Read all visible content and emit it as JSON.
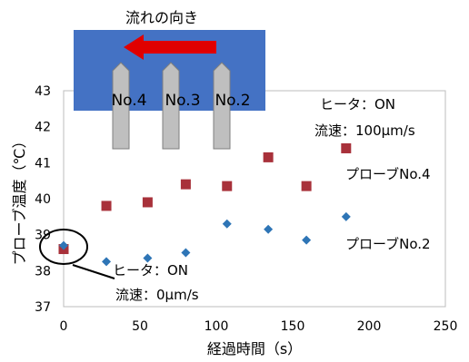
{
  "chart_data": {
    "type": "scatter",
    "xlabel": "経過時間（s）",
    "ylabel": "プローブ温度（℃）",
    "xlim": [
      0,
      250
    ],
    "ylim": [
      37,
      43
    ],
    "xticks": [
      0,
      50,
      100,
      150,
      200,
      250
    ],
    "yticks": [
      37,
      38,
      39,
      40,
      41,
      42,
      43
    ],
    "grid": false,
    "series": [
      {
        "name": "プローブNo.4",
        "marker": "square",
        "color": "#a8313a",
        "points": [
          {
            "x": 0,
            "y": 38.6
          },
          {
            "x": 28,
            "y": 39.8
          },
          {
            "x": 55,
            "y": 39.9
          },
          {
            "x": 80,
            "y": 40.4
          },
          {
            "x": 107,
            "y": 40.35
          },
          {
            "x": 134,
            "y": 41.15
          },
          {
            "x": 159,
            "y": 40.35
          },
          {
            "x": 185,
            "y": 41.4
          }
        ]
      },
      {
        "name": "プローブNo.2",
        "marker": "diamond",
        "color": "#2e75b6",
        "points": [
          {
            "x": 0,
            "y": 38.7
          },
          {
            "x": 28,
            "y": 38.25
          },
          {
            "x": 55,
            "y": 38.35
          },
          {
            "x": 80,
            "y": 38.5
          },
          {
            "x": 107,
            "y": 39.3
          },
          {
            "x": 134,
            "y": 39.15
          },
          {
            "x": 159,
            "y": 38.85
          },
          {
            "x": 185,
            "y": 39.5
          }
        ]
      }
    ],
    "annotations": {
      "heater_on_top": {
        "line1": "ヒータ：ON",
        "line2": "流速：100μm/s"
      },
      "heater_on_bottom": {
        "line1": "ヒータ：ON",
        "line2": "流速：0μm/s"
      }
    },
    "inset": {
      "title": "流れの向き",
      "probes": [
        "No.4",
        "No.3",
        "No.2"
      ],
      "box_color": "#4472c4",
      "arrow_color": "#e00000",
      "probe_color": "#bfbfbf"
    }
  }
}
